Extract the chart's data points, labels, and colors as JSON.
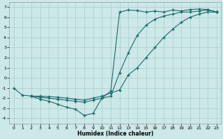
{
  "xlabel": "Humidex (Indice chaleur)",
  "bg_color": "#cce8e8",
  "grid_color": "#aacccc",
  "line_color": "#1a6b6b",
  "xlim": [
    -0.5,
    23.5
  ],
  "ylim": [
    -4.5,
    7.5
  ],
  "xticks": [
    0,
    1,
    2,
    3,
    4,
    5,
    6,
    7,
    8,
    9,
    10,
    11,
    12,
    13,
    14,
    15,
    16,
    17,
    18,
    19,
    20,
    21,
    22,
    23
  ],
  "yticks": [
    -4,
    -3,
    -2,
    -1,
    0,
    1,
    2,
    3,
    4,
    5,
    6,
    7
  ],
  "line1_x": [
    0,
    1,
    2,
    3,
    4,
    5,
    6,
    7,
    8,
    9,
    10,
    11,
    12,
    13,
    14,
    15,
    16,
    17,
    18,
    19,
    20,
    21,
    22,
    23
  ],
  "line1_y": [
    -1.0,
    -1.7,
    -1.8,
    -2.1,
    -2.3,
    -2.6,
    -2.9,
    -3.1,
    -3.7,
    -3.5,
    -2.0,
    -1.3,
    6.5,
    6.7,
    6.65,
    6.5,
    6.6,
    6.5,
    6.7,
    6.6,
    6.75,
    6.8,
    6.75,
    6.5
  ],
  "line2_x": [
    2,
    3,
    4,
    5,
    6,
    7,
    8,
    9,
    10,
    11,
    12,
    13,
    14,
    15,
    16,
    17,
    18,
    19,
    20,
    21,
    22,
    23
  ],
  "line2_y": [
    -1.8,
    -1.8,
    -1.85,
    -1.9,
    -2.0,
    -2.1,
    -2.2,
    -2.0,
    -1.8,
    -1.5,
    -1.2,
    0.3,
    1.0,
    2.0,
    3.0,
    4.0,
    4.8,
    5.5,
    6.0,
    6.3,
    6.5,
    6.5
  ],
  "line3_x": [
    2,
    3,
    4,
    5,
    6,
    7,
    8,
    9,
    10,
    11,
    12,
    13,
    14,
    15,
    16,
    17,
    18,
    19,
    20,
    21,
    22,
    23
  ],
  "line3_y": [
    -1.8,
    -1.9,
    -2.0,
    -2.1,
    -2.2,
    -2.3,
    -2.4,
    -2.2,
    -2.0,
    -1.8,
    0.5,
    2.5,
    4.2,
    5.2,
    5.8,
    6.1,
    6.3,
    6.5,
    6.5,
    6.6,
    6.7,
    6.5
  ]
}
